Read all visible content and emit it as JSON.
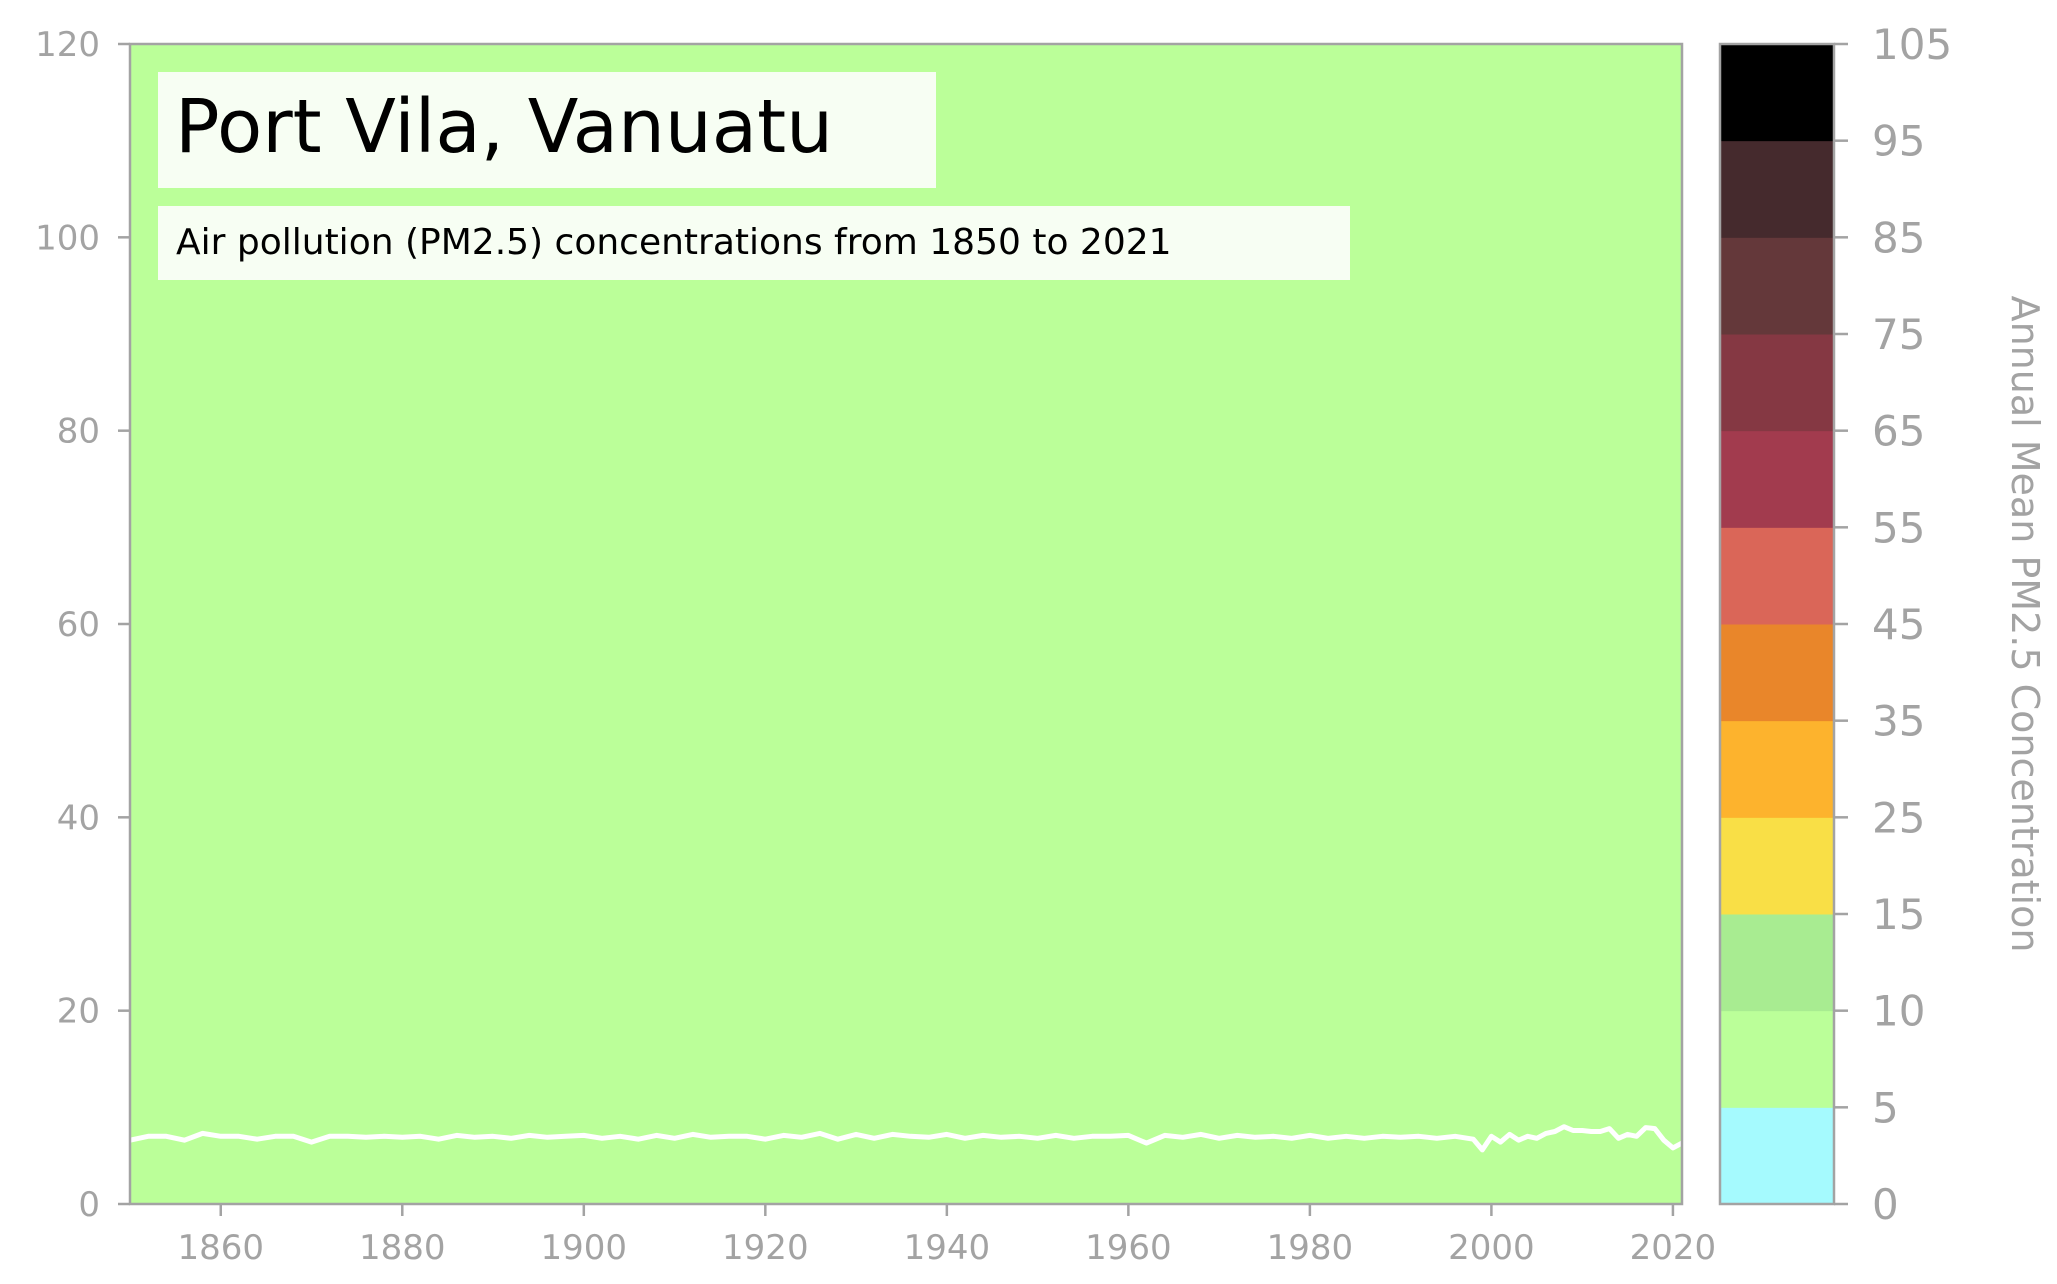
{
  "chart_data": {
    "type": "line",
    "title": "Port Vila, Vanuatu",
    "subtitle": "Air pollution (PM2.5) concentrations from 1850 to 2021",
    "xlabel": "",
    "ylabel": "",
    "xlim": [
      1850,
      2021
    ],
    "ylim": [
      0,
      120
    ],
    "x_ticks": [
      1860,
      1880,
      1900,
      1920,
      1940,
      1960,
      1980,
      2000,
      2020
    ],
    "y_ticks": [
      0,
      20,
      40,
      60,
      80,
      100,
      120
    ],
    "grid": false,
    "background_color": "#bbff99",
    "line_color": "#ffffff",
    "series": [
      {
        "values": [
          [
            1850,
            6.6
          ],
          [
            1852,
            7.0
          ],
          [
            1854,
            7.0
          ],
          [
            1856,
            6.6
          ],
          [
            1858,
            7.3
          ],
          [
            1860,
            7.0
          ],
          [
            1862,
            7.0
          ],
          [
            1864,
            6.7
          ],
          [
            1866,
            7.0
          ],
          [
            1868,
            7.0
          ],
          [
            1870,
            6.4
          ],
          [
            1872,
            7.0
          ],
          [
            1874,
            7.0
          ],
          [
            1876,
            6.9
          ],
          [
            1878,
            7.0
          ],
          [
            1880,
            6.9
          ],
          [
            1882,
            7.0
          ],
          [
            1884,
            6.7
          ],
          [
            1886,
            7.1
          ],
          [
            1888,
            6.9
          ],
          [
            1890,
            7.0
          ],
          [
            1892,
            6.8
          ],
          [
            1894,
            7.1
          ],
          [
            1896,
            6.9
          ],
          [
            1898,
            7.0
          ],
          [
            1900,
            7.1
          ],
          [
            1902,
            6.8
          ],
          [
            1904,
            7.0
          ],
          [
            1906,
            6.7
          ],
          [
            1908,
            7.1
          ],
          [
            1910,
            6.8
          ],
          [
            1912,
            7.2
          ],
          [
            1914,
            6.9
          ],
          [
            1916,
            7.0
          ],
          [
            1918,
            7.0
          ],
          [
            1920,
            6.7
          ],
          [
            1922,
            7.1
          ],
          [
            1924,
            6.9
          ],
          [
            1926,
            7.3
          ],
          [
            1928,
            6.7
          ],
          [
            1930,
            7.2
          ],
          [
            1932,
            6.8
          ],
          [
            1934,
            7.2
          ],
          [
            1936,
            7.0
          ],
          [
            1938,
            6.9
          ],
          [
            1940,
            7.2
          ],
          [
            1942,
            6.8
          ],
          [
            1944,
            7.1
          ],
          [
            1946,
            6.9
          ],
          [
            1948,
            7.0
          ],
          [
            1950,
            6.8
          ],
          [
            1952,
            7.1
          ],
          [
            1954,
            6.8
          ],
          [
            1956,
            7.0
          ],
          [
            1958,
            7.0
          ],
          [
            1960,
            7.1
          ],
          [
            1962,
            6.3
          ],
          [
            1964,
            7.1
          ],
          [
            1966,
            6.9
          ],
          [
            1968,
            7.2
          ],
          [
            1970,
            6.8
          ],
          [
            1972,
            7.1
          ],
          [
            1974,
            6.9
          ],
          [
            1976,
            7.0
          ],
          [
            1978,
            6.8
          ],
          [
            1980,
            7.1
          ],
          [
            1982,
            6.8
          ],
          [
            1984,
            7.0
          ],
          [
            1986,
            6.8
          ],
          [
            1988,
            7.0
          ],
          [
            1990,
            6.9
          ],
          [
            1992,
            7.0
          ],
          [
            1994,
            6.8
          ],
          [
            1996,
            7.0
          ],
          [
            1998,
            6.7
          ],
          [
            1999,
            5.6
          ],
          [
            2000,
            7.0
          ],
          [
            2001,
            6.4
          ],
          [
            2002,
            7.2
          ],
          [
            2003,
            6.6
          ],
          [
            2004,
            7.0
          ],
          [
            2005,
            6.8
          ],
          [
            2006,
            7.3
          ],
          [
            2007,
            7.5
          ],
          [
            2008,
            8.0
          ],
          [
            2009,
            7.6
          ],
          [
            2010,
            7.6
          ],
          [
            2011,
            7.5
          ],
          [
            2012,
            7.5
          ],
          [
            2013,
            7.8
          ],
          [
            2014,
            6.8
          ],
          [
            2015,
            7.2
          ],
          [
            2016,
            7.0
          ],
          [
            2017,
            7.9
          ],
          [
            2018,
            7.8
          ],
          [
            2019,
            6.6
          ],
          [
            2020,
            5.8
          ],
          [
            2021,
            6.3
          ]
        ]
      }
    ],
    "colorbar": {
      "label": "Annual Mean PM2.5 Concentration",
      "ticks": [
        0,
        5,
        10,
        15,
        25,
        35,
        45,
        55,
        65,
        75,
        85,
        95,
        105
      ],
      "bands": [
        {
          "from": 0,
          "to": 5,
          "color": "#a5fafe"
        },
        {
          "from": 5,
          "to": 10,
          "color": "#bbff99"
        },
        {
          "from": 10,
          "to": 15,
          "color": "#a8ec91"
        },
        {
          "from": 15,
          "to": 25,
          "color": "#f9df46"
        },
        {
          "from": 25,
          "to": 35,
          "color": "#fdb32d"
        },
        {
          "from": 35,
          "to": 45,
          "color": "#e9862a"
        },
        {
          "from": 45,
          "to": 55,
          "color": "#da6658"
        },
        {
          "from": 55,
          "to": 65,
          "color": "#a23b4e"
        },
        {
          "from": 65,
          "to": 75,
          "color": "#853843"
        },
        {
          "from": 75,
          "to": 85,
          "color": "#64383a"
        },
        {
          "from": 85,
          "to": 95,
          "color": "#452a2d"
        },
        {
          "from": 95,
          "to": 105,
          "color": "#000000"
        }
      ]
    }
  }
}
